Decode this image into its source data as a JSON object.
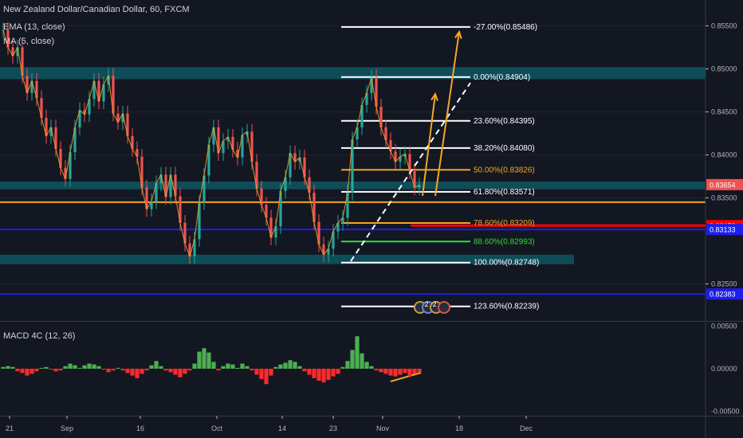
{
  "legend": {
    "title": "New Zealand Dollar/Canadian Dollar, 60, FXCM",
    "ema": "EMA (13, close)",
    "ma": "MA (5, close)",
    "macd": "MACD 4C (12, 26)"
  },
  "chart_data": {
    "type": "line",
    "price_axis": {
      "ticks": [
        "0.85500",
        "0.85000",
        "0.84500",
        "0.84000",
        "0.83500",
        "0.82500"
      ],
      "tick_values": [
        0.855,
        0.85,
        0.845,
        0.84,
        0.835,
        0.825
      ],
      "range": [
        0.8207,
        0.858
      ]
    },
    "macd_axis": {
      "ticks": [
        "0.00500",
        "0.00000",
        "-0.00500"
      ],
      "tick_values": [
        0.005,
        0.0,
        -0.005
      ],
      "range": [
        -0.0055,
        0.0055
      ]
    },
    "time_axis": {
      "labels": [
        "21",
        "Sep",
        "16",
        "Oct",
        "14",
        "23",
        "Nov",
        "18",
        "Dec"
      ]
    },
    "price_labels": [
      {
        "text": "0.83654",
        "value": 0.83654,
        "color": "#ef5350"
      },
      {
        "text": "0.83178",
        "value": 0.83178,
        "color": "#ff0000"
      },
      {
        "text": "0.83133",
        "value": 0.83133,
        "color": "#1e1eee"
      },
      {
        "text": "0.82383",
        "value": 0.82383,
        "color": "#1e1eee"
      }
    ],
    "price_series": [
      0.8545,
      0.8525,
      0.8515,
      0.8525,
      0.8492,
      0.8472,
      0.8486,
      0.8466,
      0.8443,
      0.8422,
      0.8432,
      0.8407,
      0.8385,
      0.8372,
      0.8403,
      0.8432,
      0.8452,
      0.8447,
      0.8465,
      0.8486,
      0.8462,
      0.8482,
      0.8492,
      0.8448,
      0.8438,
      0.8448,
      0.8422,
      0.8407,
      0.8398,
      0.8362,
      0.8337,
      0.8346,
      0.8367,
      0.8377,
      0.8351,
      0.8377,
      0.8352,
      0.8321,
      0.8297,
      0.8282,
      0.8302,
      0.8345,
      0.8376,
      0.8412,
      0.8432,
      0.8402,
      0.8416,
      0.8421,
      0.8406,
      0.8397,
      0.8423,
      0.8427,
      0.8392,
      0.8361,
      0.8342,
      0.8327,
      0.8304,
      0.8317,
      0.8358,
      0.8374,
      0.8402,
      0.8392,
      0.8397,
      0.8374,
      0.8356,
      0.8322,
      0.8296,
      0.8284,
      0.8291,
      0.8311,
      0.8321,
      0.8327,
      0.8356,
      0.8418,
      0.8432,
      0.8458,
      0.8472,
      0.849,
      0.8456,
      0.8432,
      0.8417,
      0.8404,
      0.8392,
      0.8398,
      0.8401,
      0.8381,
      0.8362,
      0.8365
    ],
    "macd_series": [
      0.0002,
      0.0003,
      0.0002,
      -0.0003,
      -0.0005,
      -0.0008,
      -0.0006,
      -0.0003,
      0.0001,
      0.0002,
      -0.0001,
      -0.0003,
      -0.0002,
      0.0003,
      0.0006,
      0.0004,
      0.0001,
      0.0004,
      0.0006,
      0.0005,
      0.0003,
      -0.0001,
      -0.0004,
      -0.0002,
      0.0001,
      -0.0002,
      -0.0005,
      -0.0008,
      -0.0011,
      -0.0006,
      -0.0002,
      0.0004,
      0.0009,
      0.0003,
      -0.0002,
      -0.0004,
      -0.0007,
      -0.001,
      -0.0006,
      -0.0002,
      0.0006,
      0.002,
      0.0024,
      0.0019,
      0.0008,
      -0.0002,
      0.0003,
      0.0006,
      0.0005,
      0.0001,
      0.0006,
      0.0003,
      -0.0002,
      -0.0007,
      -0.0012,
      -0.0018,
      -0.0008,
      0.0002,
      0.0005,
      0.0007,
      0.001,
      0.0008,
      0.0003,
      -0.0003,
      -0.0007,
      -0.0011,
      -0.0014,
      -0.0016,
      -0.0013,
      -0.0009,
      -0.0006,
      0.0002,
      0.0009,
      0.0022,
      0.0038,
      0.0018,
      0.0008,
      0.0003,
      -0.0002,
      -0.0004,
      -0.0006,
      -0.0008,
      -0.0009,
      -0.0007,
      -0.0005,
      -0.0009,
      -0.0006,
      -0.0004
    ],
    "fib_levels": [
      {
        "label": "-27.00%(0.85486)",
        "value": 0.85486,
        "color": "#ffffff"
      },
      {
        "label": "0.00%(0.84904)",
        "value": 0.84904,
        "color": "#ffffff"
      },
      {
        "label": "23.60%(0.84395)",
        "value": 0.84395,
        "color": "#ffffff"
      },
      {
        "label": "38.20%(0.84080)",
        "value": 0.8408,
        "color": "#ffffff"
      },
      {
        "label": "50.00%(0.83826)",
        "value": 0.83826,
        "color": "#f5a623"
      },
      {
        "label": "61.80%(0.83571)",
        "value": 0.83571,
        "color": "#ffffff"
      },
      {
        "label": "78.60%(0.83209)",
        "value": 0.83209,
        "color": "#f5a623"
      },
      {
        "label": "88.60%(0.82993)",
        "value": 0.82993,
        "color": "#33dd33"
      },
      {
        "label": "100.00%(0.82748)",
        "value": 0.82748,
        "color": "#ffffff"
      },
      {
        "label": "123.60%(0.82239)",
        "value": 0.82239,
        "color": "#ffffff"
      }
    ],
    "zones": [
      {
        "from": 0.8488,
        "to": 0.8502
      },
      {
        "from": 0.836,
        "to": 0.8369
      },
      {
        "from": 0.8273,
        "to": 0.8284
      }
    ],
    "horizontal_lines": [
      {
        "value": 0.8345,
        "color": "#f5a623"
      },
      {
        "value": 0.83178,
        "color": "#ff0000"
      },
      {
        "value": 0.83133,
        "color": "#1e1eee"
      },
      {
        "value": 0.82383,
        "color": "#1e1eee"
      }
    ],
    "badges": [
      "2",
      "2"
    ],
    "colors": {
      "bull": "#26a69a",
      "bear": "#ef5350",
      "macd_up": "#4caf50",
      "macd_down": "#ff2b2b",
      "zone": "#0e5a66",
      "arrow": "#f5a623"
    }
  }
}
